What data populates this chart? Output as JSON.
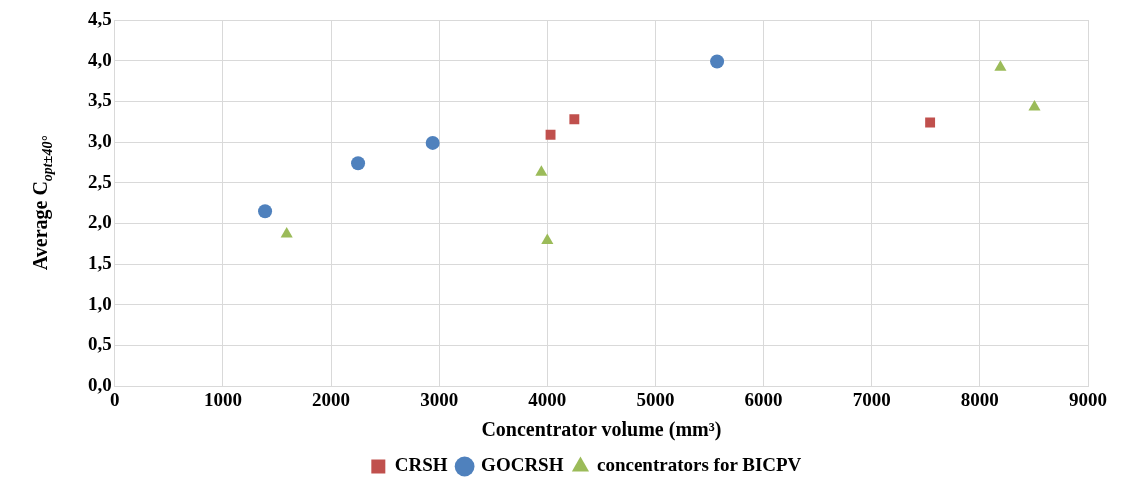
{
  "chart_data": {
    "type": "scatter",
    "xlabel": "Concentrator volume (mm³)",
    "ylabel": "Average C$_{opt±40°}$",
    "series": [
      {
        "name": "CRSH",
        "color": "#c0504d",
        "marker": "square",
        "x": [
          4030,
          4250,
          7540
        ],
        "values": [
          3.09,
          3.28,
          3.24
        ]
      },
      {
        "name": "GOCRSH",
        "color": "#4f81bd",
        "marker": "circle",
        "x": [
          1390,
          2250,
          2940,
          5570
        ],
        "values": [
          2.15,
          2.74,
          2.99,
          3.99
        ]
      },
      {
        "name": "concentrators for BICPV",
        "color": "#9bbb59",
        "marker": "triangle",
        "x": [
          1590,
          3945,
          4000,
          8190,
          8505
        ],
        "values": [
          1.87,
          2.63,
          1.79,
          3.92,
          3.43
        ]
      }
    ],
    "xlim": [
      0,
      9000
    ],
    "xticks": [
      0,
      1000,
      2000,
      3000,
      4000,
      5000,
      6000,
      7000,
      8000,
      9000
    ],
    "ylim": [
      0,
      4.5
    ],
    "yticks": [
      {
        "value": 0,
        "label": "0,0"
      },
      {
        "value": 0.5,
        "label": "0,5"
      },
      {
        "value": 1,
        "label": "1,0"
      },
      {
        "value": 1.5,
        "label": "1,5"
      },
      {
        "value": 2,
        "label": "2,0"
      },
      {
        "value": 2.5,
        "label": "2,5"
      },
      {
        "value": 3,
        "label": "3,0"
      },
      {
        "value": 3.5,
        "label": "3,5"
      },
      {
        "value": 4,
        "label": "4,0"
      },
      {
        "value": 4.5,
        "label": "4,5"
      }
    ],
    "grid": true,
    "legend": "bottom"
  }
}
